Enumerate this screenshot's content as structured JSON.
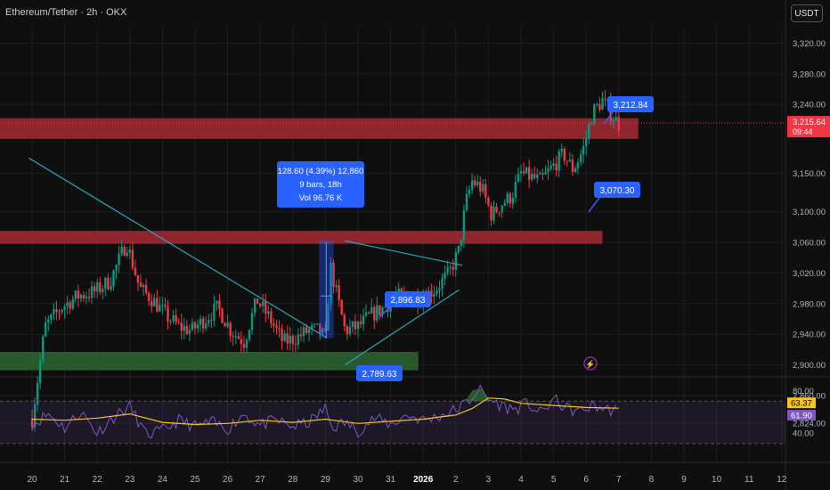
{
  "header": {
    "title": "Ethereum/Tether · 2h · OKX",
    "unit_button": "USDT"
  },
  "colors": {
    "background": "#0f0f0f",
    "grid": "#1f1f1f",
    "up": "#089981",
    "down": "#f23645",
    "resistance_zone": "#b22a36",
    "support_zone": "#2e6b33",
    "trendline": "#2aa8b8",
    "label_blue": "#2962ff",
    "rsi_line": "#7e57c2",
    "rsi_ma": "#f5c518"
  },
  "chart_data": [
    {
      "type": "candlestick",
      "x_tick_labels": [
        "20",
        "21",
        "22",
        "23",
        "24",
        "25",
        "26",
        "27",
        "28",
        "29",
        "30",
        "31",
        "2026",
        "2",
        "3",
        "4",
        "5",
        "6",
        "7",
        "8",
        "9",
        "10",
        "11",
        "12"
      ],
      "y_tick_labels": [
        "3,320.00",
        "3,280.00",
        "3,240.00",
        "3,150.00",
        "3,100.00",
        "3,060.00",
        "3,020.00",
        "2,980.00",
        "2,940.00",
        "2,900.00",
        "2,860.00",
        "2,824.00"
      ],
      "y_ticks": [
        3320,
        3280,
        3240,
        3150,
        3100,
        3060,
        3020,
        2980,
        2940,
        2900,
        2860,
        2824
      ],
      "close_path": [
        [
          0.0,
          2830
        ],
        [
          0.4,
          2950
        ],
        [
          0.9,
          2975
        ],
        [
          1.4,
          2990
        ],
        [
          1.9,
          2995
        ],
        [
          2.4,
          3010
        ],
        [
          2.9,
          3060
        ],
        [
          3.3,
          3000
        ],
        [
          3.7,
          2985
        ],
        [
          4.1,
          2965
        ],
        [
          4.5,
          2950
        ],
        [
          4.9,
          2945
        ],
        [
          5.3,
          2960
        ],
        [
          5.7,
          2975
        ],
        [
          6.1,
          2945
        ],
        [
          6.5,
          2930
        ],
        [
          6.9,
          2985
        ],
        [
          7.3,
          2960
        ],
        [
          7.7,
          2930
        ],
        [
          8.1,
          2935
        ],
        [
          8.5,
          2945
        ],
        [
          8.8,
          2945
        ],
        [
          9.0,
          2935
        ],
        [
          9.15,
          3030
        ],
        [
          9.3,
          3000
        ],
        [
          9.6,
          2945
        ],
        [
          10.0,
          2950
        ],
        [
          10.4,
          2965
        ],
        [
          10.8,
          2975
        ],
        [
          11.2,
          2990
        ],
        [
          11.6,
          2985
        ],
        [
          12.0,
          2990
        ],
        [
          12.4,
          3000
        ],
        [
          12.8,
          3020
        ],
        [
          13.1,
          3050
        ],
        [
          13.3,
          3110
        ],
        [
          13.5,
          3140
        ],
        [
          13.8,
          3130
        ],
        [
          14.1,
          3095
        ],
        [
          14.4,
          3110
        ],
        [
          14.7,
          3120
        ],
        [
          15.0,
          3150
        ],
        [
          15.3,
          3145
        ],
        [
          15.6,
          3140
        ],
        [
          16.0,
          3160
        ],
        [
          16.3,
          3175
        ],
        [
          16.6,
          3155
        ],
        [
          16.9,
          3180
        ],
        [
          17.2,
          3230
        ],
        [
          17.5,
          3245
        ],
        [
          17.8,
          3225
        ],
        [
          18.0,
          3215
        ]
      ],
      "current_price": "3,215.64",
      "countdown": "09:44",
      "price_labels": [
        {
          "text": "3,212.84",
          "value": 3212.84
        },
        {
          "text": "3,070.30",
          "value": 3070.3
        },
        {
          "text": "2,896.83",
          "value": 2896.83
        },
        {
          "text": "2,789.63",
          "value": 2789.63
        }
      ],
      "measure_box": {
        "line1": "128.60 (4.39%) 12,860",
        "line2": "9 bars, 18h",
        "line3": "Vol 96.76 K"
      },
      "zones": [
        {
          "kind": "resistance",
          "from_x": 0,
          "to_x": 18.6,
          "low": 3195,
          "high": 3222
        },
        {
          "kind": "resistance",
          "from_x": 0,
          "to_x": 17.5,
          "low": 3058,
          "high": 3075
        },
        {
          "kind": "support",
          "from_x": 0,
          "to_x": 11.85,
          "low": 2893,
          "high": 2917
        }
      ],
      "trendlines": [
        {
          "from": [
            -0.1,
            3170
          ],
          "to": [
            9.05,
            2935
          ]
        },
        {
          "from": [
            9.6,
            3062
          ],
          "to": [
            13.2,
            3030
          ]
        },
        {
          "from": [
            9.6,
            2900
          ],
          "to": [
            13.1,
            2998
          ]
        }
      ]
    },
    {
      "type": "line",
      "name": "RSI",
      "ylim": [
        30,
        85
      ],
      "y_tick_labels": [
        "80.00",
        "40.00"
      ],
      "y_ticks": [
        80,
        40
      ],
      "bands": [
        70,
        30
      ],
      "value_labels": [
        {
          "text": "63.37",
          "value": 63.37
        },
        {
          "text": "61.90",
          "value": 61.9
        }
      ],
      "rsi_path": [
        [
          0.0,
          48
        ],
        [
          0.5,
          58
        ],
        [
          1.0,
          45
        ],
        [
          1.5,
          60
        ],
        [
          2.0,
          40
        ],
        [
          2.5,
          55
        ],
        [
          3.0,
          65
        ],
        [
          3.5,
          38
        ],
        [
          4.0,
          42
        ],
        [
          4.5,
          52
        ],
        [
          5.0,
          46
        ],
        [
          5.5,
          50
        ],
        [
          6.0,
          44
        ],
        [
          6.5,
          58
        ],
        [
          7.0,
          47
        ],
        [
          7.5,
          52
        ],
        [
          8.0,
          46
        ],
        [
          8.5,
          50
        ],
        [
          9.0,
          63
        ],
        [
          9.2,
          45
        ],
        [
          9.6,
          50
        ],
        [
          10.0,
          42
        ],
        [
          10.5,
          54
        ],
        [
          11.0,
          48
        ],
        [
          11.5,
          57
        ],
        [
          12.0,
          52
        ],
        [
          12.5,
          56
        ],
        [
          13.0,
          62
        ],
        [
          13.4,
          70
        ],
        [
          13.7,
          82
        ],
        [
          14.0,
          72
        ],
        [
          14.4,
          66
        ],
        [
          14.8,
          62
        ],
        [
          15.2,
          68
        ],
        [
          15.6,
          58
        ],
        [
          16.0,
          72
        ],
        [
          16.4,
          63
        ],
        [
          16.8,
          60
        ],
        [
          17.2,
          66
        ],
        [
          17.6,
          62
        ],
        [
          18.0,
          61.9
        ]
      ],
      "ma_path": [
        [
          0.0,
          53
        ],
        [
          1.0,
          52
        ],
        [
          2.0,
          54
        ],
        [
          3.0,
          58
        ],
        [
          4.0,
          50
        ],
        [
          5.0,
          48
        ],
        [
          6.0,
          49
        ],
        [
          7.0,
          52
        ],
        [
          8.0,
          50
        ],
        [
          9.0,
          53
        ],
        [
          10.0,
          49
        ],
        [
          11.0,
          51
        ],
        [
          12.0,
          53
        ],
        [
          13.0,
          57
        ],
        [
          13.5,
          63
        ],
        [
          14.0,
          73
        ],
        [
          14.5,
          72
        ],
        [
          15.0,
          68
        ],
        [
          16.0,
          66
        ],
        [
          17.0,
          64
        ],
        [
          18.0,
          63.37
        ]
      ]
    }
  ]
}
